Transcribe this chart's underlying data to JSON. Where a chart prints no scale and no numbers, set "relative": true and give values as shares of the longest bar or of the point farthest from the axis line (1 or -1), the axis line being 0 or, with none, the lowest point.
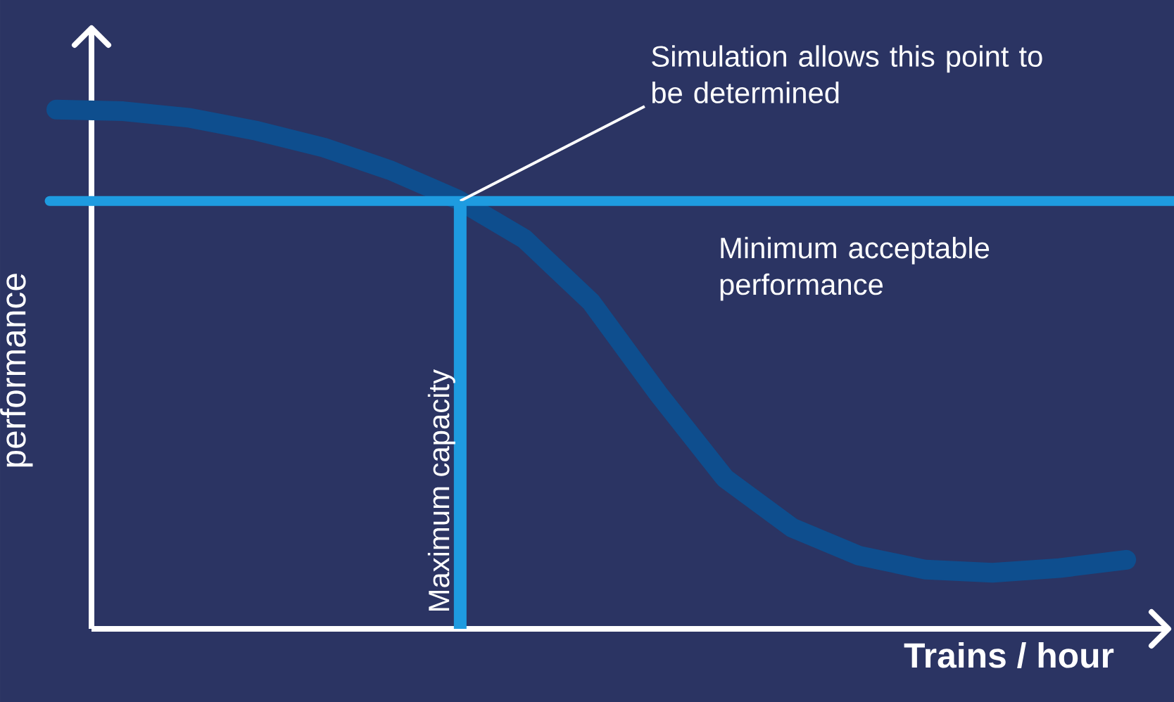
{
  "chart_data": {
    "type": "line",
    "relative": true,
    "tick_labels": false,
    "xlabel": "Trains / hour",
    "ylabel": "performance",
    "categories": [
      null,
      null,
      null,
      null,
      null,
      null,
      null,
      null,
      null,
      null,
      null,
      null,
      null,
      null,
      null,
      null,
      null
    ],
    "series": [
      {
        "color": "#0e4e8e",
        "values": [
          1.0,
          0.997,
          0.984,
          0.959,
          0.927,
          0.883,
          0.827,
          0.751,
          0.629,
          0.453,
          0.29,
          0.195,
          0.141,
          0.114,
          0.108,
          0.117,
          0.133
        ]
      }
    ],
    "ref_lines": [
      {
        "axis": "y",
        "value": 0.824,
        "label": "Minimum acceptable performance",
        "color": "#1e9be0",
        "line_style": "solid"
      }
    ],
    "annotations": [
      "Simulation allows this point to be determined",
      "Maximum capacity"
    ]
  }
}
